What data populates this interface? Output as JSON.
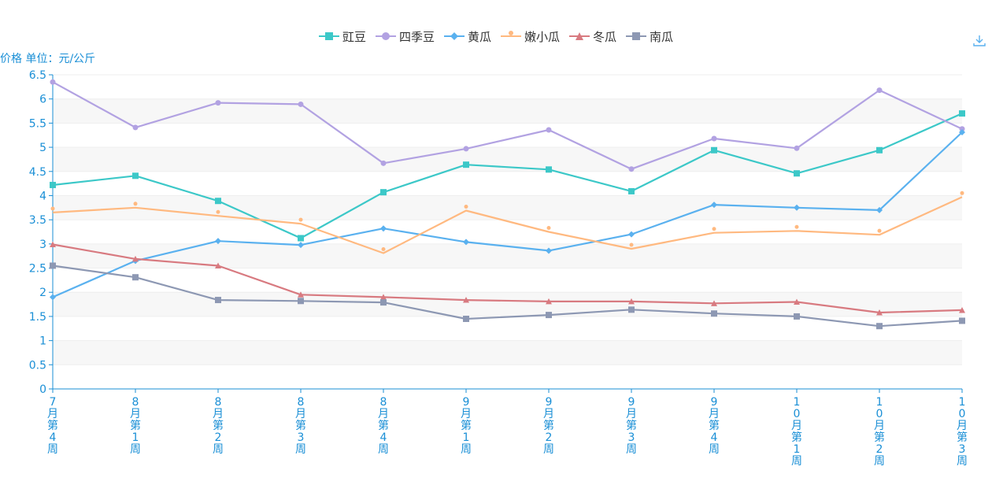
{
  "chart_data": {
    "type": "line",
    "ylabel": "价格 单位：元/公斤",
    "ylim": [
      0,
      6.5
    ],
    "ytick_step": 0.5,
    "yticks": [
      "0",
      "0.5",
      "1",
      "1.5",
      "2",
      "2.5",
      "3",
      "3.5",
      "4",
      "4.5",
      "5",
      "5.5",
      "6",
      "6.5"
    ],
    "categories": [
      "7月第4周",
      "8月第1周",
      "8月第2周",
      "8月第3周",
      "8月第4周",
      "9月第1周",
      "9月第2周",
      "9月第3周",
      "9月第4周",
      "10月第1周",
      "10月第2周",
      "10月第3周"
    ],
    "grid": "horizontal-bands",
    "legend_position": "top-center",
    "series": [
      {
        "name": "豇豆",
        "color": "#3cc8c8",
        "marker": "square",
        "values": [
          4.22,
          4.41,
          3.89,
          3.12,
          4.07,
          4.64,
          4.54,
          4.09,
          4.94,
          4.46,
          4.94,
          5.7
        ]
      },
      {
        "name": "四季豆",
        "color": "#b2a2e2",
        "marker": "circle",
        "values": [
          6.35,
          5.41,
          5.92,
          5.89,
          4.67,
          4.97,
          5.36,
          4.55,
          5.18,
          4.98,
          6.18,
          5.38
        ]
      },
      {
        "name": "黄瓜",
        "color": "#5ab1ef",
        "marker": "diamond",
        "values": [
          1.9,
          2.65,
          3.06,
          2.98,
          3.32,
          3.04,
          2.86,
          3.2,
          3.81,
          3.75,
          3.7,
          5.31
        ]
      },
      {
        "name": "嫩小瓜",
        "color": "#ffb980",
        "marker": "pin",
        "values": [
          3.65,
          3.75,
          3.58,
          3.42,
          2.81,
          3.69,
          3.25,
          2.9,
          3.23,
          3.27,
          3.19,
          3.97
        ]
      },
      {
        "name": "冬瓜",
        "color": "#d87a80",
        "marker": "triangle",
        "values": [
          2.99,
          2.69,
          2.55,
          1.95,
          1.9,
          1.84,
          1.81,
          1.81,
          1.77,
          1.8,
          1.58,
          1.63
        ]
      },
      {
        "name": "南瓜",
        "color": "#8d98b3",
        "marker": "square",
        "values": [
          2.55,
          2.31,
          1.84,
          1.82,
          1.79,
          1.45,
          1.53,
          1.64,
          1.56,
          1.5,
          1.3,
          1.41
        ]
      }
    ]
  },
  "ui": {
    "download_icon": "download-icon",
    "axis_color": "#1a8fd6"
  }
}
